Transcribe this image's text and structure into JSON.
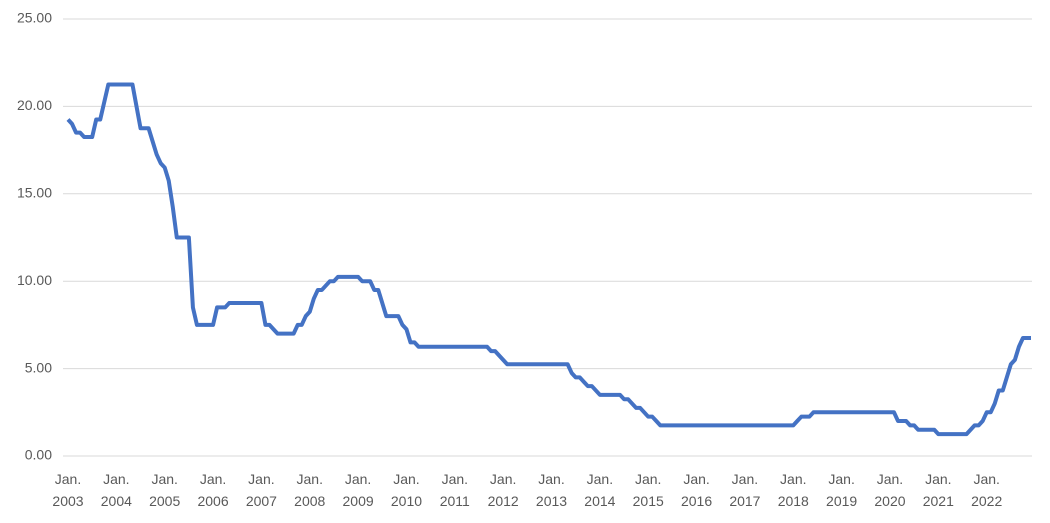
{
  "chart_data": {
    "type": "line",
    "categories": [
      "Jan. 2003",
      null,
      null,
      null,
      null,
      null,
      null,
      null,
      null,
      null,
      null,
      null,
      "Jan. 2004",
      null,
      null,
      null,
      null,
      null,
      null,
      null,
      null,
      null,
      null,
      null,
      "Jan. 2005",
      null,
      null,
      null,
      null,
      null,
      null,
      null,
      null,
      null,
      null,
      null,
      "Jan. 2006",
      null,
      null,
      null,
      null,
      null,
      null,
      null,
      null,
      null,
      null,
      null,
      "Jan. 2007",
      null,
      null,
      null,
      null,
      null,
      null,
      null,
      null,
      null,
      null,
      null,
      "Jan. 2008",
      null,
      null,
      null,
      null,
      null,
      null,
      null,
      null,
      null,
      null,
      null,
      "Jan. 2009",
      null,
      null,
      null,
      null,
      null,
      null,
      null,
      null,
      null,
      null,
      null,
      "Jan. 2010",
      null,
      null,
      null,
      null,
      null,
      null,
      null,
      null,
      null,
      null,
      null,
      "Jan. 2011",
      null,
      null,
      null,
      null,
      null,
      null,
      null,
      null,
      null,
      null,
      null,
      "Jan. 2012",
      null,
      null,
      null,
      null,
      null,
      null,
      null,
      null,
      null,
      null,
      null,
      "Jan. 2013",
      null,
      null,
      null,
      null,
      null,
      null,
      null,
      null,
      null,
      null,
      null,
      "Jan. 2014",
      null,
      null,
      null,
      null,
      null,
      null,
      null,
      null,
      null,
      null,
      null,
      "Jan. 2015",
      null,
      null,
      null,
      null,
      null,
      null,
      null,
      null,
      null,
      null,
      null,
      "Jan. 2016",
      null,
      null,
      null,
      null,
      null,
      null,
      null,
      null,
      null,
      null,
      null,
      "Jan. 2017",
      null,
      null,
      null,
      null,
      null,
      null,
      null,
      null,
      null,
      null,
      null,
      "Jan. 2018",
      null,
      null,
      null,
      null,
      null,
      null,
      null,
      null,
      null,
      null,
      null,
      "Jan. 2019",
      null,
      null,
      null,
      null,
      null,
      null,
      null,
      null,
      null,
      null,
      null,
      "Jan. 2020",
      null,
      null,
      null,
      null,
      null,
      null,
      null,
      null,
      null,
      null,
      null,
      "Jan. 2021",
      null,
      null,
      null,
      null,
      null,
      null,
      null,
      null,
      null,
      null,
      null,
      "Jan. 2022",
      null,
      null,
      null,
      null,
      null,
      null,
      null,
      null,
      null,
      null,
      null
    ],
    "values": [
      19.25,
      19.0,
      18.5,
      18.5,
      18.25,
      18.25,
      18.25,
      19.25,
      19.25,
      20.25,
      21.25,
      21.25,
      21.25,
      21.25,
      21.25,
      21.25,
      21.25,
      20.0,
      18.75,
      18.75,
      18.75,
      18.0,
      17.25,
      16.75,
      16.5,
      15.75,
      14.25,
      12.5,
      12.5,
      12.5,
      12.5,
      8.5,
      7.5,
      7.5,
      7.5,
      7.5,
      7.5,
      8.5,
      8.5,
      8.5,
      8.75,
      8.75,
      8.75,
      8.75,
      8.75,
      8.75,
      8.75,
      8.75,
      8.75,
      7.5,
      7.5,
      7.25,
      7.0,
      7.0,
      7.0,
      7.0,
      7.0,
      7.5,
      7.5,
      8.0,
      8.25,
      9.0,
      9.5,
      9.5,
      9.75,
      10.0,
      10.0,
      10.25,
      10.25,
      10.25,
      10.25,
      10.25,
      10.25,
      10.0,
      10.0,
      10.0,
      9.5,
      9.5,
      8.75,
      8.0,
      8.0,
      8.0,
      8.0,
      7.5,
      7.25,
      6.5,
      6.5,
      6.25,
      6.25,
      6.25,
      6.25,
      6.25,
      6.25,
      6.25,
      6.25,
      6.25,
      6.25,
      6.25,
      6.25,
      6.25,
      6.25,
      6.25,
      6.25,
      6.25,
      6.25,
      6.0,
      6.0,
      5.75,
      5.5,
      5.25,
      5.25,
      5.25,
      5.25,
      5.25,
      5.25,
      5.25,
      5.25,
      5.25,
      5.25,
      5.25,
      5.25,
      5.25,
      5.25,
      5.25,
      5.25,
      4.75,
      4.5,
      4.5,
      4.25,
      4.0,
      4.0,
      3.75,
      3.5,
      3.5,
      3.5,
      3.5,
      3.5,
      3.5,
      3.25,
      3.25,
      3.0,
      2.75,
      2.75,
      2.5,
      2.25,
      2.25,
      2.0,
      1.75,
      1.75,
      1.75,
      1.75,
      1.75,
      1.75,
      1.75,
      1.75,
      1.75,
      1.75,
      1.75,
      1.75,
      1.75,
      1.75,
      1.75,
      1.75,
      1.75,
      1.75,
      1.75,
      1.75,
      1.75,
      1.75,
      1.75,
      1.75,
      1.75,
      1.75,
      1.75,
      1.75,
      1.75,
      1.75,
      1.75,
      1.75,
      1.75,
      1.75,
      2.0,
      2.25,
      2.25,
      2.25,
      2.5,
      2.5,
      2.5,
      2.5,
      2.5,
      2.5,
      2.5,
      2.5,
      2.5,
      2.5,
      2.5,
      2.5,
      2.5,
      2.5,
      2.5,
      2.5,
      2.5,
      2.5,
      2.5,
      2.5,
      2.5,
      2.0,
      2.0,
      2.0,
      1.75,
      1.75,
      1.5,
      1.5,
      1.5,
      1.5,
      1.5,
      1.25,
      1.25,
      1.25,
      1.25,
      1.25,
      1.25,
      1.25,
      1.25,
      1.5,
      1.75,
      1.75,
      2.0,
      2.5,
      2.5,
      3.0,
      3.75,
      3.75,
      4.5,
      5.25,
      5.5,
      6.25,
      6.75,
      6.75,
      6.75
    ],
    "color": "#4472c4",
    "ylim": [
      0,
      25
    ],
    "yticks": [
      {
        "value": 0,
        "label": "0.00"
      },
      {
        "value": 5,
        "label": "5.00"
      },
      {
        "value": 10,
        "label": "10.00"
      },
      {
        "value": 15,
        "label": "15.00"
      },
      {
        "value": 20,
        "label": "20.00"
      },
      {
        "value": 25,
        "label": "25.00"
      }
    ],
    "grid": true
  }
}
